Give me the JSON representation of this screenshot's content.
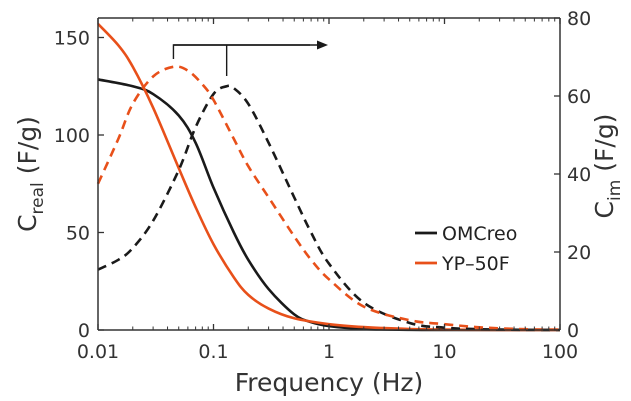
{
  "chart_data": {
    "type": "line",
    "xlabel": "Frequency (Hz)",
    "x_scale": "log",
    "xlim": [
      0.01,
      100
    ],
    "x_ticks": [
      0.01,
      0.1,
      1,
      10,
      100
    ],
    "x_tick_labels": [
      "0.01",
      "0.1",
      "1",
      "10",
      "100"
    ],
    "ylabel_left": {
      "main": "C",
      "sub": "real",
      "suffix": " (F/g)"
    },
    "ylim_left": [
      0,
      160
    ],
    "y_ticks_left": [
      0,
      50,
      100,
      150
    ],
    "ylabel_right": {
      "main": "C",
      "sub": "im",
      "suffix": " (F/g)"
    },
    "ylim_right": [
      0,
      80
    ],
    "y_ticks_right": [
      0,
      20,
      40,
      60,
      80
    ],
    "legend": {
      "position": "center-right",
      "entries": [
        {
          "label": "OMCreo",
          "color": "#1a1a1a"
        },
        {
          "label": "YP–50F",
          "color": "#e8501a"
        }
      ]
    },
    "series": [
      {
        "name": "OMCreo",
        "quantity": "C_real",
        "axis": "left",
        "style": "solid",
        "color": "#1a1a1a",
        "x": [
          0.01,
          0.02,
          0.03,
          0.05,
          0.07,
          0.1,
          0.15,
          0.2,
          0.3,
          0.5,
          0.7,
          1,
          2,
          5,
          10,
          50,
          100
        ],
        "y": [
          128.5,
          125,
          121,
          110,
          96,
          73,
          50,
          36,
          21,
          8,
          4,
          2,
          0.5,
          0.1,
          0,
          0,
          0
        ]
      },
      {
        "name": "YP–50F",
        "quantity": "C_real",
        "axis": "left",
        "style": "solid",
        "color": "#e8501a",
        "x": [
          0.01,
          0.015,
          0.02,
          0.03,
          0.05,
          0.07,
          0.1,
          0.15,
          0.2,
          0.3,
          0.5,
          1,
          2,
          5,
          10,
          20,
          50,
          100
        ],
        "y": [
          157,
          146,
          135,
          114,
          83,
          63,
          44,
          27,
          18,
          11,
          6,
          3,
          1.5,
          0.5,
          0.2,
          0.1,
          0,
          0
        ]
      },
      {
        "name": "OMCreo",
        "quantity": "C_im",
        "axis": "right",
        "style": "dashed",
        "color": "#1a1a1a",
        "x": [
          0.01,
          0.015,
          0.02,
          0.03,
          0.05,
          0.07,
          0.1,
          0.13,
          0.15,
          0.2,
          0.3,
          0.5,
          0.7,
          1,
          2,
          5,
          10,
          20,
          50,
          100
        ],
        "y": [
          15.5,
          18,
          21,
          28,
          41,
          52,
          60.5,
          62.5,
          62,
          58,
          48,
          34,
          25,
          17,
          7,
          1.8,
          0.6,
          0.2,
          0.05,
          0
        ]
      },
      {
        "name": "YP–50F",
        "quantity": "C_im",
        "axis": "right",
        "style": "dashed",
        "color": "#e8501a",
        "x": [
          0.01,
          0.015,
          0.02,
          0.03,
          0.045,
          0.06,
          0.08,
          0.1,
          0.15,
          0.2,
          0.3,
          0.5,
          0.7,
          1,
          2,
          5,
          10,
          20,
          50,
          100
        ],
        "y": [
          37.5,
          49,
          58,
          65,
          67.5,
          66.5,
          63,
          59,
          49,
          42,
          34,
          24,
          18,
          13,
          6,
          2.5,
          1.5,
          0.7,
          0.2,
          0.1
        ]
      }
    ],
    "annotations": [
      {
        "type": "arrow",
        "direction": "right",
        "from_x": 0.045,
        "to_x": 0.13,
        "axis": "right",
        "meaning": "C_im peak shift"
      }
    ]
  }
}
